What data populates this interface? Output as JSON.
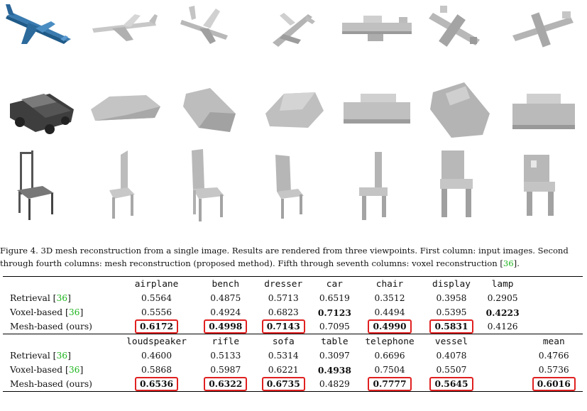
{
  "caption": {
    "line1": "Figure 4. 3D mesh reconstruction from a single image. Results are rendered from three viewpoints. First column: input images. Second",
    "line2_a": "through fourth columns: mesh reconstruction (proposed method). Fifth through seventh columns: voxel reconstruction [",
    "line2_cite": "36",
    "line2_b": "]."
  },
  "table": {
    "header1": [
      "",
      "airplane",
      "bench",
      "dresser",
      "car",
      "chair",
      "display",
      "lamp",
      ""
    ],
    "rows1": [
      {
        "label_a": "Retrieval [",
        "cite": "36",
        "label_b": "]",
        "values": [
          "0.5564",
          "0.4875",
          "0.5713",
          "0.6519",
          "0.3512",
          "0.3958",
          "0.2905",
          ""
        ],
        "bold": [
          false,
          false,
          false,
          false,
          false,
          false,
          false,
          false
        ],
        "boxed": [
          false,
          false,
          false,
          false,
          false,
          false,
          false,
          false
        ]
      },
      {
        "label_a": "Voxel-based [",
        "cite": "36",
        "label_b": "]",
        "values": [
          "0.5556",
          "0.4924",
          "0.6823",
          "0.7123",
          "0.4494",
          "0.5395",
          "0.4223",
          ""
        ],
        "bold": [
          false,
          false,
          false,
          true,
          false,
          false,
          true,
          false
        ],
        "boxed": [
          false,
          false,
          false,
          false,
          false,
          false,
          false,
          false
        ]
      },
      {
        "label_a": "Mesh-based (ours)",
        "cite": "",
        "label_b": "",
        "values": [
          "0.6172",
          "0.4998",
          "0.7143",
          "0.7095",
          "0.4990",
          "0.5831",
          "0.4126",
          ""
        ],
        "bold": [
          true,
          true,
          true,
          false,
          true,
          true,
          false,
          false
        ],
        "boxed": [
          true,
          true,
          true,
          false,
          true,
          true,
          false,
          false
        ]
      }
    ],
    "header2": [
      "",
      "loudspeaker",
      "rifle",
      "sofa",
      "table",
      "telephone",
      "vessel",
      "",
      "mean"
    ],
    "rows2": [
      {
        "label_a": "Retrieval [",
        "cite": "36",
        "label_b": "]",
        "values": [
          "0.4600",
          "0.5133",
          "0.5314",
          "0.3097",
          "0.6696",
          "0.4078",
          "",
          "0.4766"
        ],
        "bold": [
          false,
          false,
          false,
          false,
          false,
          false,
          false,
          false
        ],
        "boxed": [
          false,
          false,
          false,
          false,
          false,
          false,
          false,
          false
        ]
      },
      {
        "label_a": "Voxel-based [",
        "cite": "36",
        "label_b": "]",
        "values": [
          "0.5868",
          "0.5987",
          "0.6221",
          "0.4938",
          "0.7504",
          "0.5507",
          "",
          "0.5736"
        ],
        "bold": [
          false,
          false,
          false,
          true,
          false,
          false,
          false,
          false
        ],
        "boxed": [
          false,
          false,
          false,
          false,
          false,
          false,
          false,
          false
        ]
      },
      {
        "label_a": "Mesh-based (ours)",
        "cite": "",
        "label_b": "",
        "values": [
          "0.6536",
          "0.6322",
          "0.6735",
          "0.4829",
          "0.7777",
          "0.5645",
          "",
          "0.6016"
        ],
        "bold": [
          true,
          true,
          true,
          false,
          true,
          true,
          false,
          true
        ],
        "boxed": [
          true,
          true,
          true,
          false,
          true,
          true,
          false,
          true
        ]
      }
    ]
  }
}
